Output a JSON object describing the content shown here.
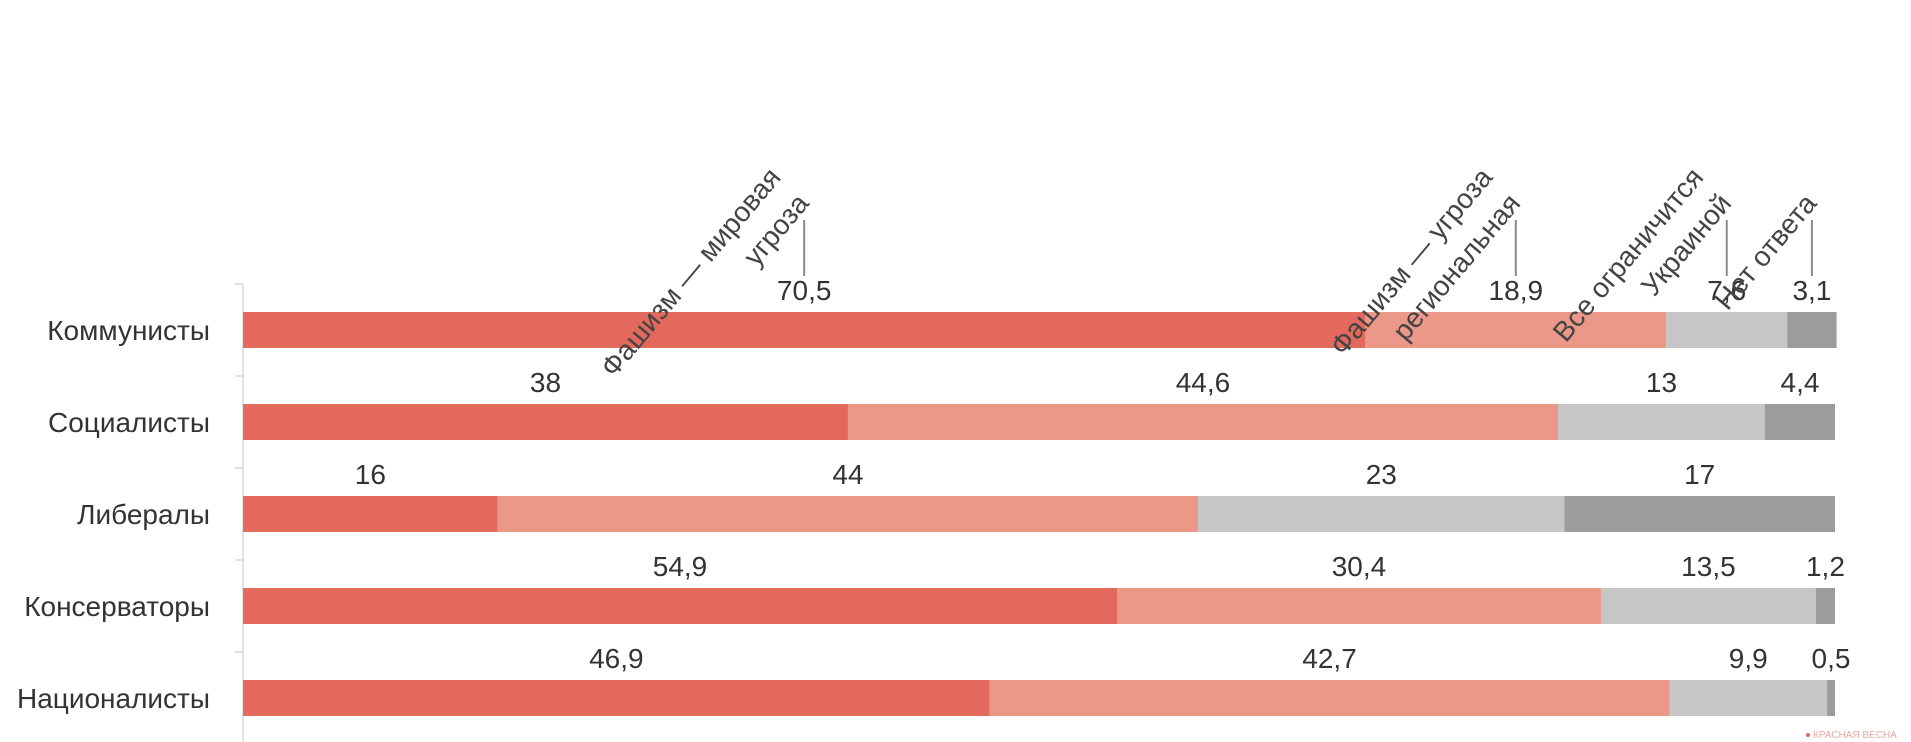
{
  "chart_data": {
    "type": "bar",
    "orientation": "horizontal",
    "stacked": true,
    "title": "",
    "xlabel": "",
    "ylabel": "",
    "xlim": [
      0,
      100
    ],
    "grid": false,
    "legend_placement": "top, rotated labels with leader lines above first bar",
    "categories": [
      "Коммунисты",
      "Социалисты",
      "Либералы",
      "Консерваторы",
      "Националисты"
    ],
    "series": [
      {
        "name": "Фашизм — мировая угроза",
        "color": "#e2695c",
        "values": [
          70.5,
          38,
          16,
          54.9,
          46.9
        ],
        "labels": [
          "70,5",
          "38",
          "16",
          "54,9",
          "46,9"
        ]
      },
      {
        "name": "Фашизм — угроза региональная",
        "color": "#eb9888",
        "values": [
          18.9,
          44.6,
          44,
          30.4,
          42.7
        ],
        "labels": [
          "18,9",
          "44,6",
          "44",
          "30,4",
          "42,7"
        ]
      },
      {
        "name": "Все ограничится Украиной",
        "color": "#c5c6c5",
        "values": [
          7.6,
          13,
          23,
          13.5,
          9.9
        ],
        "labels": [
          "7,6",
          "13",
          "23",
          "13,5",
          "9,9"
        ]
      },
      {
        "name": "Нет ответа",
        "color": "#9c9c9c",
        "values": [
          3.1,
          4.4,
          17,
          1.2,
          0.5
        ],
        "labels": [
          "3,1",
          "4,4",
          "17",
          "1,2",
          "0,5"
        ]
      }
    ],
    "legend": [
      {
        "line1": "Фашизм — мировая",
        "line2": "угроза"
      },
      {
        "line1": "Фашизм — угроза",
        "line2": "региональная"
      },
      {
        "line1": "Все ограничится",
        "line2": "Украиной"
      },
      {
        "line1": "Нет ответа",
        "line2": ""
      }
    ]
  },
  "watermark": "КРАСНАЯ ВЕСНА"
}
